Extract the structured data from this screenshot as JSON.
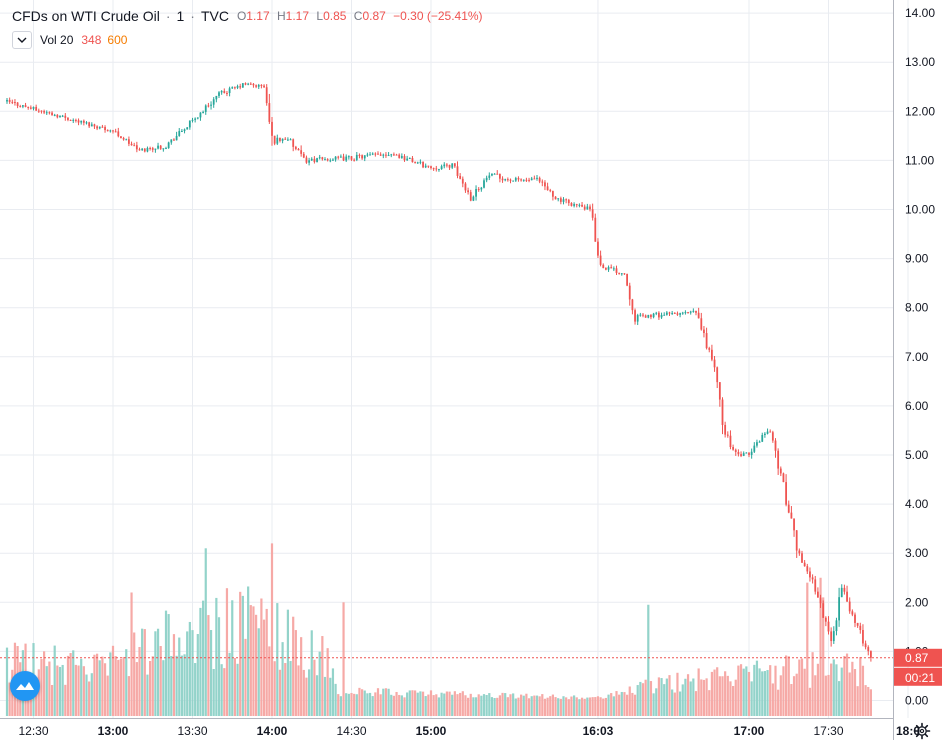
{
  "legend": {
    "symbol": "CFDs on WTI Crude Oil",
    "interval": "1",
    "exchange": "TVC",
    "open_label": "O",
    "open": "1.17",
    "high_label": "H",
    "high": "1.17",
    "low_label": "L",
    "low": "0.85",
    "close_label": "C",
    "close": "0.87",
    "change": "−0.30 (−25.41%)"
  },
  "volume_legend": {
    "label": "Vol 20",
    "value1": "348",
    "value2": "600"
  },
  "price_axis": {
    "last_price": "0.87",
    "countdown": "00:21"
  },
  "colors": {
    "up": "#26a69a",
    "down": "#ef5350",
    "volume_up": "#93d3ca",
    "volume_down": "#f6a9a6",
    "grid": "#e9ecf1",
    "last_price": "#ef5350",
    "logo": "#2196f3"
  },
  "icons": {
    "collapse": "chevron-down-icon",
    "logo": "tradingview-logo-icon",
    "settings": "gear-icon"
  },
  "chart_data": {
    "type": "candlestick",
    "title": "CFDs on WTI Crude Oil",
    "interval_minutes": 1,
    "x_range": [
      "12:20",
      "18:00"
    ],
    "ylim": [
      -0.3,
      14.2
    ],
    "y_ticks": [
      0.0,
      1.0,
      2.0,
      3.0,
      4.0,
      5.0,
      6.0,
      7.0,
      8.0,
      9.0,
      10.0,
      11.0,
      12.0,
      13.0,
      14.0
    ],
    "x_tick_labels": [
      "12:30",
      "13:00",
      "13:30",
      "14:00",
      "14:30",
      "15:00",
      "16:03",
      "17:00",
      "17:30",
      "18:0"
    ],
    "x_tick_times": [
      "12:30",
      "13:00",
      "13:30",
      "14:00",
      "14:30",
      "15:00",
      "16:03",
      "17:00",
      "17:30",
      "18:00"
    ],
    "x_tick_bold": [
      false,
      true,
      false,
      true,
      false,
      true,
      true,
      true,
      false,
      true
    ],
    "grid": true,
    "last_price": 0.87,
    "price_path": [
      [
        "12:20",
        12.2
      ],
      [
        "12:40",
        11.9
      ],
      [
        "13:00",
        11.6
      ],
      [
        "13:10",
        11.2
      ],
      [
        "13:20",
        11.3
      ],
      [
        "13:30",
        11.8
      ],
      [
        "13:40",
        12.35
      ],
      [
        "13:50",
        12.55
      ],
      [
        "13:57",
        12.5
      ],
      [
        "14:00",
        11.4
      ],
      [
        "14:06",
        11.45
      ],
      [
        "14:12",
        11.0
      ],
      [
        "14:30",
        11.05
      ],
      [
        "14:45",
        11.15
      ],
      [
        "15:00",
        10.85
      ],
      [
        "15:08",
        10.9
      ],
      [
        "15:15",
        10.25
      ],
      [
        "15:22",
        10.7
      ],
      [
        "15:30",
        10.6
      ],
      [
        "15:40",
        10.6
      ],
      [
        "15:48",
        10.2
      ],
      [
        "16:00",
        10.0
      ],
      [
        "16:04",
        8.85
      ],
      [
        "16:13",
        8.7
      ],
      [
        "16:17",
        7.8
      ],
      [
        "16:25",
        7.85
      ],
      [
        "16:40",
        7.9
      ],
      [
        "16:47",
        6.8
      ],
      [
        "16:50",
        5.6
      ],
      [
        "16:55",
        5.0
      ],
      [
        "17:00",
        5.0
      ],
      [
        "17:05",
        5.4
      ],
      [
        "17:08",
        5.5
      ],
      [
        "17:12",
        4.6
      ],
      [
        "17:18",
        3.1
      ],
      [
        "17:25",
        2.3
      ],
      [
        "17:31",
        1.2
      ],
      [
        "17:35",
        2.3
      ],
      [
        "17:40",
        1.6
      ],
      [
        "17:46",
        0.87
      ]
    ],
    "volume_profile": [
      [
        "12:20",
        0.9
      ],
      [
        "12:55",
        0.7
      ],
      [
        "13:05",
        0.9
      ],
      [
        "13:25",
        1.4
      ],
      [
        "13:55",
        1.7
      ],
      [
        "14:00",
        1.6
      ],
      [
        "14:10",
        1.2
      ],
      [
        "14:20",
        0.9
      ],
      [
        "14:25",
        0.2
      ],
      [
        "16:05",
        0.06
      ],
      [
        "16:20",
        0.3
      ],
      [
        "16:40",
        0.45
      ],
      [
        "17:00",
        0.55
      ],
      [
        "17:30",
        0.75
      ],
      [
        "17:46",
        0.6
      ]
    ],
    "volume_spikes": [
      [
        "13:35",
        3.1
      ],
      [
        "14:00",
        3.2
      ],
      [
        "14:27",
        2.0
      ],
      [
        "13:07",
        2.2
      ],
      [
        "16:22",
        1.95
      ],
      [
        "17:22",
        2.4
      ],
      [
        "17:27",
        2.5
      ],
      [
        "17:28",
        2.1
      ]
    ]
  }
}
